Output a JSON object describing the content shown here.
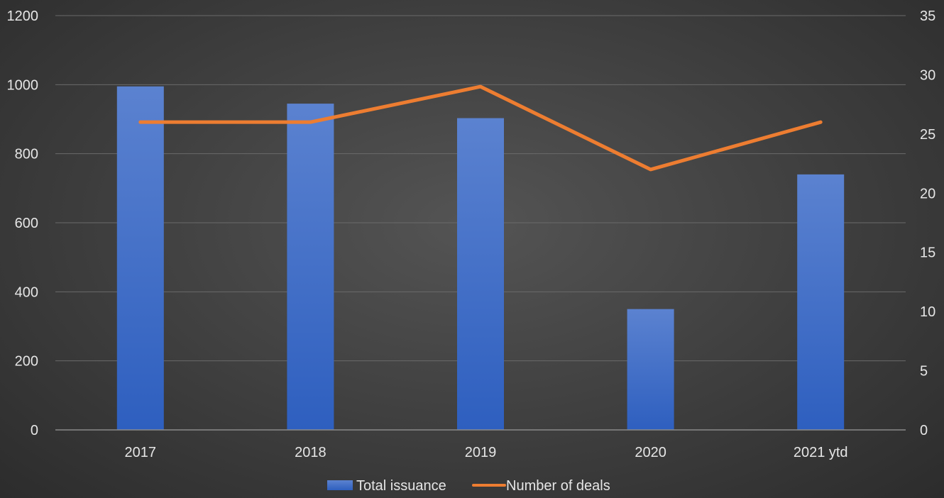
{
  "chart_data": {
    "type": "bar",
    "categories": [
      "2017",
      "2018",
      "2019",
      "2020",
      "2021 ytd"
    ],
    "series": [
      {
        "name": "Total issuance",
        "type": "bar",
        "axis": "left",
        "color": "#4472c4",
        "values": [
          995,
          945,
          903,
          350,
          740
        ]
      },
      {
        "name": "Number of deals",
        "type": "line",
        "axis": "right",
        "color": "#ed7d31",
        "values": [
          26,
          26,
          29,
          22,
          26
        ]
      }
    ],
    "y_left": {
      "range": [
        0,
        1200
      ],
      "ticks": [
        "0",
        "200",
        "400",
        "600",
        "800",
        "1000",
        "1200"
      ]
    },
    "y_right": {
      "range": [
        0,
        35
      ],
      "ticks": [
        "0",
        "5",
        "10",
        "15",
        "20",
        "25",
        "30",
        "35"
      ]
    },
    "grid": true,
    "legend": "bottom",
    "title": "",
    "xlabel": "",
    "ylabel": ""
  }
}
